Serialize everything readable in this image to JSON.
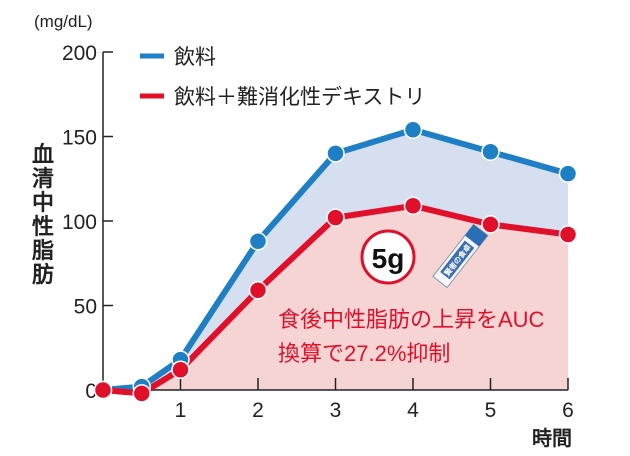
{
  "chart_data": {
    "type": "line",
    "unit_label": "(mg/dL)",
    "ylabel": "血清中性脂肪",
    "xlabel": "時間",
    "ylim": [
      0,
      200
    ],
    "yticks": [
      0,
      50,
      100,
      150,
      200
    ],
    "xlim": [
      0,
      6
    ],
    "xticks": [
      1,
      2,
      3,
      4,
      5,
      6
    ],
    "x": [
      0,
      0.5,
      1,
      2,
      3,
      4,
      5,
      6
    ],
    "series": [
      {
        "name": "飲料",
        "color": "#1f7fc4",
        "fill": "#d6dff0",
        "values": [
          0,
          2,
          18,
          88,
          140,
          154,
          141,
          128
        ]
      },
      {
        "name": "飲料＋難消化性デキストリ",
        "color": "#e0102a",
        "fill": "#f7d4d4",
        "values": [
          0,
          -2,
          12,
          59,
          102,
          109,
          98,
          92
        ]
      }
    ],
    "legend_position": "top-left",
    "badge": "5g",
    "package_label": "賢者の食卓",
    "annotation": [
      "食後中性脂肪の上昇をAUC",
      "換算で27.2%抑制"
    ]
  }
}
